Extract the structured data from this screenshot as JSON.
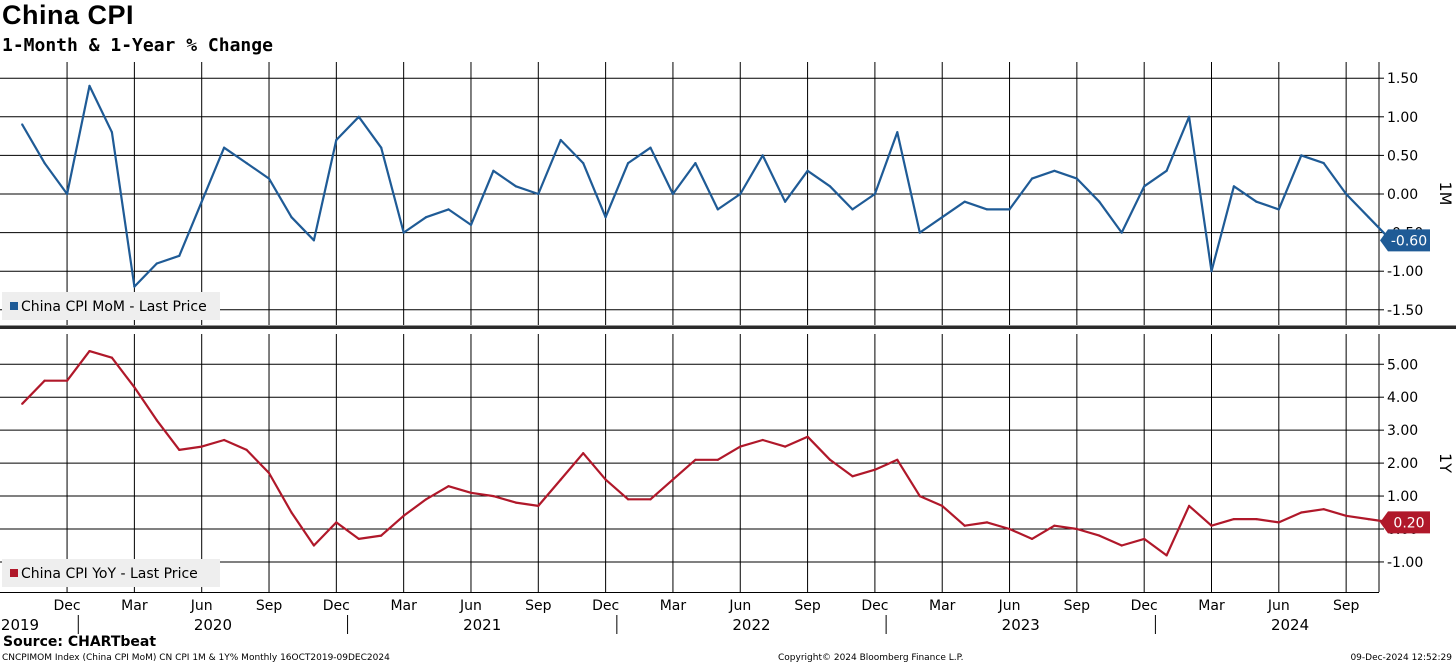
{
  "header": {
    "title": "China CPI",
    "subtitle": "1-Month & 1-Year % Change"
  },
  "footer": {
    "source": "Source: CHARTbeat",
    "ticker_info": "CNCPIMOM Index (China CPI MoM) CN CPI 1M & 1Y% Monthly 16OCT2019-09DEC2024",
    "copyright": "Copyright© 2024 Bloomberg Finance L.P.",
    "timestamp": "09-Dec-2024 12:52:29"
  },
  "colors": {
    "mom": "#1f5b96",
    "yoy": "#b0182a",
    "grid": "#000000"
  },
  "chart_data": [
    {
      "type": "line",
      "axis_label": "1M",
      "legend": "China CPI MoM - Last Price",
      "legend_position": "bottom-left",
      "last_value_label": "-0.60",
      "grid": true,
      "ylim": [
        -1.75,
        1.75
      ],
      "yticks": [
        "1.50",
        "1.00",
        "0.50",
        "0.00",
        "-0.50",
        "-1.00",
        "-1.50"
      ],
      "ytick_values": [
        1.5,
        1.0,
        0.5,
        0.0,
        -0.5,
        -1.0,
        -1.5
      ],
      "x": [
        "2019-10",
        "2019-11",
        "2019-12",
        "2020-01",
        "2020-02",
        "2020-03",
        "2020-04",
        "2020-05",
        "2020-06",
        "2020-07",
        "2020-08",
        "2020-09",
        "2020-10",
        "2020-11",
        "2020-12",
        "2021-01",
        "2021-02",
        "2021-03",
        "2021-04",
        "2021-05",
        "2021-06",
        "2021-07",
        "2021-08",
        "2021-09",
        "2021-10",
        "2021-11",
        "2021-12",
        "2022-01",
        "2022-02",
        "2022-03",
        "2022-04",
        "2022-05",
        "2022-06",
        "2022-07",
        "2022-08",
        "2022-09",
        "2022-10",
        "2022-11",
        "2022-12",
        "2023-01",
        "2023-02",
        "2023-03",
        "2023-04",
        "2023-05",
        "2023-06",
        "2023-07",
        "2023-08",
        "2023-09",
        "2023-10",
        "2023-11",
        "2023-12",
        "2024-01",
        "2024-02",
        "2024-03",
        "2024-04",
        "2024-05",
        "2024-06",
        "2024-07",
        "2024-08",
        "2024-09",
        "2024-10",
        "2024-11"
      ],
      "series": [
        {
          "name": "China CPI MoM - Last Price",
          "values": [
            0.9,
            0.4,
            0.0,
            1.4,
            0.8,
            -1.2,
            -0.9,
            -0.8,
            -0.1,
            0.6,
            0.4,
            0.2,
            -0.3,
            -0.6,
            0.7,
            1.0,
            0.6,
            -0.5,
            -0.3,
            -0.2,
            -0.4,
            0.3,
            0.1,
            0.0,
            0.7,
            0.4,
            -0.3,
            0.4,
            0.6,
            0.0,
            0.4,
            -0.2,
            0.0,
            0.5,
            -0.1,
            0.3,
            0.1,
            -0.2,
            0.0,
            0.8,
            -0.5,
            -0.3,
            -0.1,
            -0.2,
            -0.2,
            0.2,
            0.3,
            0.2,
            -0.1,
            -0.5,
            0.1,
            0.3,
            1.0,
            -1.0,
            0.1,
            -0.1,
            -0.2,
            0.5,
            0.4,
            0.0,
            -0.3,
            -0.6
          ]
        }
      ]
    },
    {
      "type": "line",
      "axis_label": "1Y",
      "legend": "China CPI YoY - Last Price",
      "legend_position": "bottom-left",
      "last_value_label": "0.20",
      "grid": true,
      "ylim": [
        -1.6,
        5.9
      ],
      "yticks": [
        "5.00",
        "4.00",
        "3.00",
        "2.00",
        "1.00",
        "0.00",
        "-1.00"
      ],
      "ytick_values": [
        5,
        4,
        3,
        2,
        1,
        0,
        -1
      ],
      "x_month_ticks": [
        "Dec",
        "Mar",
        "Jun",
        "Sep",
        "Dec",
        "Mar",
        "Jun",
        "Sep",
        "Dec",
        "Mar",
        "Jun",
        "Sep",
        "Dec",
        "Mar",
        "Jun",
        "Sep",
        "Dec",
        "Mar",
        "Jun",
        "Sep"
      ],
      "x_month_tick_dates": [
        "2019-12",
        "2020-03",
        "2020-06",
        "2020-09",
        "2020-12",
        "2021-03",
        "2021-06",
        "2021-09",
        "2021-12",
        "2022-03",
        "2022-06",
        "2022-09",
        "2022-12",
        "2023-03",
        "2023-06",
        "2023-09",
        "2023-12",
        "2024-03",
        "2024-06",
        "2024-09"
      ],
      "x_year_ticks": [
        "2019",
        "2020",
        "2021",
        "2022",
        "2023",
        "2024"
      ],
      "x": [
        "2019-10",
        "2019-11",
        "2019-12",
        "2020-01",
        "2020-02",
        "2020-03",
        "2020-04",
        "2020-05",
        "2020-06",
        "2020-07",
        "2020-08",
        "2020-09",
        "2020-10",
        "2020-11",
        "2020-12",
        "2021-01",
        "2021-02",
        "2021-03",
        "2021-04",
        "2021-05",
        "2021-06",
        "2021-07",
        "2021-08",
        "2021-09",
        "2021-10",
        "2021-11",
        "2021-12",
        "2022-01",
        "2022-02",
        "2022-03",
        "2022-04",
        "2022-05",
        "2022-06",
        "2022-07",
        "2022-08",
        "2022-09",
        "2022-10",
        "2022-11",
        "2022-12",
        "2023-01",
        "2023-02",
        "2023-03",
        "2023-04",
        "2023-05",
        "2023-06",
        "2023-07",
        "2023-08",
        "2023-09",
        "2023-10",
        "2023-11",
        "2023-12",
        "2024-01",
        "2024-02",
        "2024-03",
        "2024-04",
        "2024-05",
        "2024-06",
        "2024-07",
        "2024-08",
        "2024-09",
        "2024-10",
        "2024-11"
      ],
      "series": [
        {
          "name": "China CPI YoY - Last Price",
          "values": [
            3.8,
            4.5,
            4.5,
            5.4,
            5.2,
            4.3,
            3.3,
            2.4,
            2.5,
            2.7,
            2.4,
            1.7,
            0.5,
            -0.5,
            0.2,
            -0.3,
            -0.2,
            0.4,
            0.9,
            1.3,
            1.1,
            1.0,
            0.8,
            0.7,
            1.5,
            2.3,
            1.5,
            0.9,
            0.9,
            1.5,
            2.1,
            2.1,
            2.5,
            2.7,
            2.5,
            2.8,
            2.1,
            1.6,
            1.8,
            2.1,
            1.0,
            0.7,
            0.1,
            0.2,
            0.0,
            -0.3,
            0.1,
            0.0,
            -0.2,
            -0.5,
            -0.3,
            -0.8,
            0.7,
            0.1,
            0.3,
            0.3,
            0.2,
            0.5,
            0.6,
            0.4,
            0.3,
            0.2
          ]
        }
      ]
    }
  ]
}
